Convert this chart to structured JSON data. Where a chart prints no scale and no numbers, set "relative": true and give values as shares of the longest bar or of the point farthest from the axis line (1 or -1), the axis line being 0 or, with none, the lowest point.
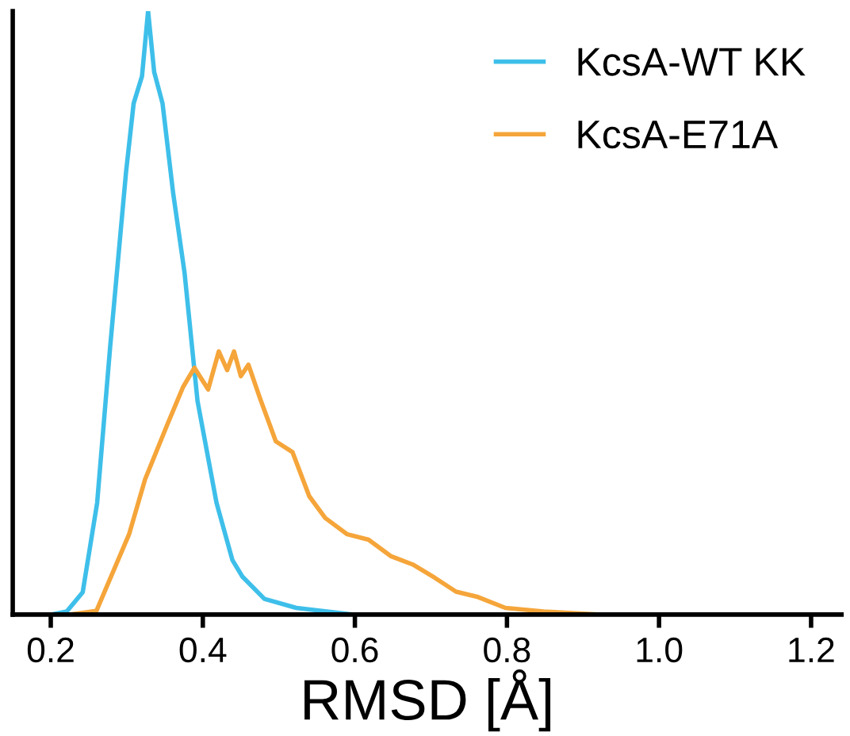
{
  "chart_data": {
    "type": "line",
    "relative": true,
    "xlabel": "RMSD [Å]",
    "xlim": [
      0.15,
      1.24
    ],
    "xticks": [
      {
        "value": 0.2,
        "label": "0.2"
      },
      {
        "value": 0.4,
        "label": "0.4"
      },
      {
        "value": 0.6,
        "label": "0.6"
      },
      {
        "value": 0.8,
        "label": "0.8"
      },
      {
        "value": 1.0,
        "label": "1.0"
      },
      {
        "value": 1.2,
        "label": "1.2"
      }
    ],
    "legend": "top right",
    "grid": false,
    "series": [
      {
        "name": "KcsA-WT KK",
        "color": "#3ebfea",
        "x": [
          0.2,
          0.221,
          0.242,
          0.261,
          0.278,
          0.299,
          0.309,
          0.32,
          0.328,
          0.336,
          0.347,
          0.361,
          0.376,
          0.393,
          0.418,
          0.439,
          0.452,
          0.481,
          0.523,
          0.598
        ],
        "values": [
          0,
          0.005,
          0.037,
          0.185,
          0.442,
          0.733,
          0.847,
          0.892,
          1,
          0.899,
          0.847,
          0.698,
          0.566,
          0.354,
          0.185,
          0.09,
          0.063,
          0.026,
          0.011,
          0
        ]
      },
      {
        "name": "KcsA-E71A",
        "color": "#f5a53a",
        "x": [
          0.224,
          0.26,
          0.303,
          0.324,
          0.353,
          0.374,
          0.389,
          0.407,
          0.421,
          0.432,
          0.441,
          0.45,
          0.46,
          0.475,
          0.496,
          0.518,
          0.54,
          0.561,
          0.59,
          0.618,
          0.647,
          0.676,
          0.705,
          0.733,
          0.762,
          0.798,
          0.848,
          0.92,
          1.006
        ],
        "values": [
          0,
          0.006,
          0.133,
          0.224,
          0.314,
          0.377,
          0.409,
          0.373,
          0.436,
          0.405,
          0.436,
          0.395,
          0.414,
          0.359,
          0.287,
          0.269,
          0.196,
          0.16,
          0.133,
          0.124,
          0.097,
          0.083,
          0.061,
          0.038,
          0.029,
          0.011,
          0.005,
          0,
          0
        ]
      }
    ]
  }
}
